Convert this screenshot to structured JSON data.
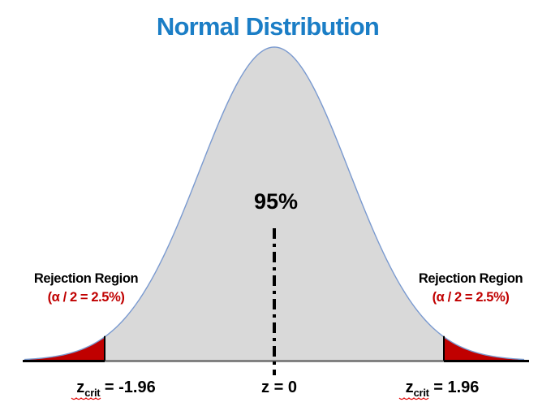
{
  "colors": {
    "title_blue": "#1B7EC6",
    "label_red": "#C00000",
    "rejection_red": "#C00000",
    "curve_fill": "#D9D9D9",
    "curve_stroke": "#7A9AD0",
    "axis_black": "#000000",
    "squiggle_red": "#E00000"
  },
  "chart_data": {
    "type": "area",
    "title": "Normal Distribution",
    "curve": "standard normal density (bell curve)",
    "x_axis": "z",
    "mean_z": 0,
    "alpha": 0.05,
    "critical_values": {
      "lower": -1.96,
      "upper": 1.96
    },
    "central_region": {
      "label": "95%",
      "probability_pct": 95
    },
    "rejection_regions": [
      {
        "side": "left",
        "label": "Rejection Region",
        "alpha_label": "(α / 2 = 2.5%)",
        "tail_pct": 2.5,
        "z_boundary": -1.96
      },
      {
        "side": "right",
        "label": "Rejection Region",
        "alpha_label": "(α / 2 = 2.5%)",
        "tail_pct": 2.5,
        "z_boundary": 1.96
      }
    ],
    "z_labels": {
      "left": {
        "base": "z",
        "sub": "crit",
        "value": " = -1.96"
      },
      "center": {
        "text": "z = 0"
      },
      "right": {
        "base": "z",
        "sub": "crit",
        "value": " = 1.96"
      }
    },
    "legend": "none",
    "grid": "off"
  }
}
